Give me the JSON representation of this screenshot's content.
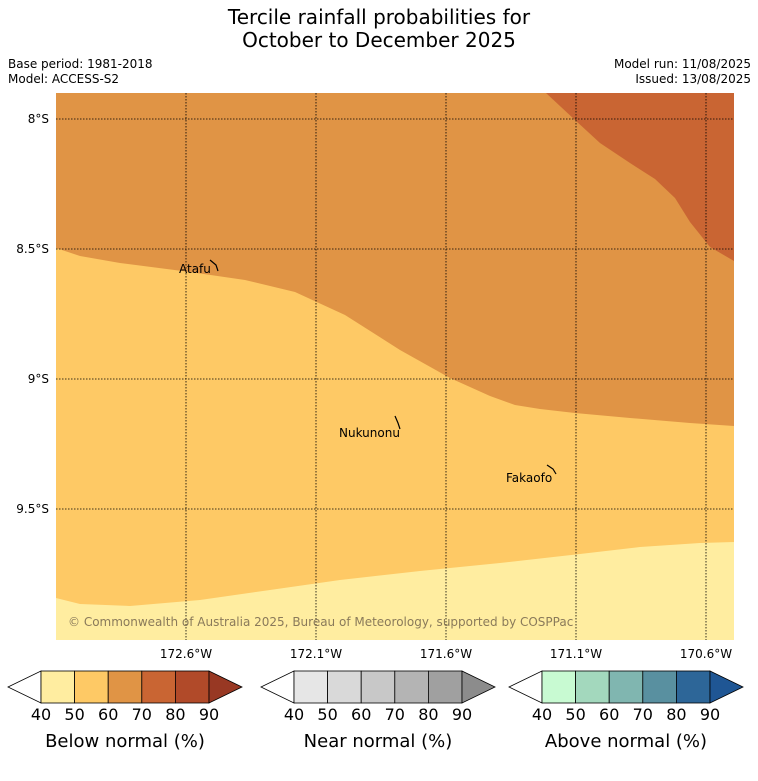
{
  "title_line1": "Tercile rainfall probabilities for",
  "title_line2": "October to December 2025",
  "base_period": "Base period: 1981-2018",
  "model": "Model: ACCESS-S2",
  "model_run": "Model run: 11/08/2025",
  "issued": "Issued: 13/08/2025",
  "copyright": "© Commonwealth of Australia 2025, Bureau of Meteorology, supported by COSPPac",
  "lat_labels": [
    "8°S",
    "8.5°S",
    "9°S",
    "9.5°S"
  ],
  "lon_labels": [
    "172.6°W",
    "172.1°W",
    "171.6°W",
    "171.1°W",
    "170.6°W"
  ],
  "places": [
    {
      "name": "Atafu"
    },
    {
      "name": "Nukunonu"
    },
    {
      "name": "Fakaofo"
    }
  ],
  "colorbars": [
    {
      "label": "Below normal (%)",
      "ticks": [
        "40",
        "50",
        "60",
        "70",
        "80",
        "90"
      ],
      "colors": [
        "#ffffff",
        "#ffeda0",
        "#fec965",
        "#e09445",
        "#c96533",
        "#b14a29",
        "#983823"
      ]
    },
    {
      "label": "Near normal (%)",
      "ticks": [
        "40",
        "50",
        "60",
        "70",
        "80",
        "90"
      ],
      "colors": [
        "#ffffff",
        "#e6e6e6",
        "#d9d9d9",
        "#c8c8c8",
        "#b4b4b4",
        "#a0a0a0",
        "#8c8c8c"
      ]
    },
    {
      "label": "Above normal (%)",
      "ticks": [
        "40",
        "50",
        "60",
        "70",
        "80",
        "90"
      ],
      "colors": [
        "#ffffff",
        "#c8fad2",
        "#a3d8bd",
        "#80b6b0",
        "#5990a0",
        "#2d6698",
        "#1f5694"
      ]
    }
  ],
  "region_colors": {
    "below_40_50": "#ffeda0",
    "below_50_60": "#fec965",
    "below_60_70": "#e09445",
    "below_70_80": "#c96533"
  }
}
